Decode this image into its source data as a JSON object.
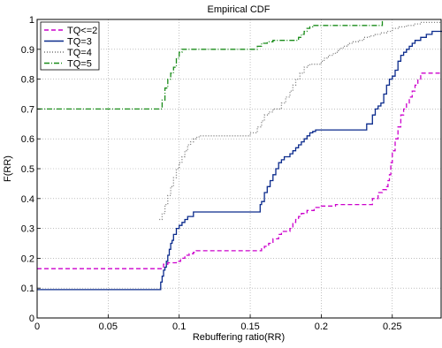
{
  "chart_data": {
    "type": "line",
    "step": true,
    "title": "Empirical CDF",
    "xlabel": "Rebuffering ratio(RR)",
    "ylabel": "F(RR)",
    "xlim": [
      0,
      0.285
    ],
    "ylim": [
      0,
      1
    ],
    "xticks": [
      0,
      0.05,
      0.1,
      0.15,
      0.2,
      0.25
    ],
    "xtick_labels": [
      "0",
      "0.05",
      "0.1",
      "0.15",
      "0.2",
      "0.25"
    ],
    "yticks": [
      0,
      0.1,
      0.2,
      0.3,
      0.4,
      0.5,
      0.6,
      0.7,
      0.8,
      0.9,
      1
    ],
    "ytick_labels": [
      "0",
      "0.1",
      "0.2",
      "0.3",
      "0.4",
      "0.5",
      "0.6",
      "0.7",
      "0.8",
      "0.9",
      "1"
    ],
    "grid": true,
    "legend_position": "top-left",
    "series": [
      {
        "name": "TQ<=2",
        "color": "#cc00cc",
        "dash": "5,3",
        "x": [
          0,
          0.088,
          0.089,
          0.092,
          0.098,
          0.101,
          0.104,
          0.107,
          0.11,
          0.112,
          0.135,
          0.15,
          0.155,
          0.158,
          0.16,
          0.163,
          0.166,
          0.17,
          0.172,
          0.175,
          0.178,
          0.18,
          0.182,
          0.184,
          0.186,
          0.19,
          0.195,
          0.2,
          0.21,
          0.22,
          0.233,
          0.236,
          0.24,
          0.243,
          0.246,
          0.247,
          0.248,
          0.249,
          0.25,
          0.252,
          0.254,
          0.256,
          0.258,
          0.26,
          0.262,
          0.264,
          0.266,
          0.268,
          0.27,
          0.285
        ],
        "y": [
          0.165,
          0.165,
          0.18,
          0.185,
          0.19,
          0.2,
          0.21,
          0.215,
          0.22,
          0.225,
          0.225,
          0.225,
          0.225,
          0.232,
          0.24,
          0.25,
          0.265,
          0.28,
          0.29,
          0.29,
          0.3,
          0.32,
          0.33,
          0.34,
          0.35,
          0.36,
          0.37,
          0.375,
          0.38,
          0.38,
          0.38,
          0.4,
          0.42,
          0.43,
          0.44,
          0.46,
          0.48,
          0.52,
          0.56,
          0.6,
          0.64,
          0.68,
          0.7,
          0.72,
          0.74,
          0.76,
          0.78,
          0.8,
          0.82,
          0.82
        ]
      },
      {
        "name": "TQ=3",
        "color": "#0a2a8c",
        "dash": "",
        "x": [
          0,
          0.086,
          0.087,
          0.088,
          0.089,
          0.09,
          0.091,
          0.092,
          0.093,
          0.094,
          0.095,
          0.096,
          0.098,
          0.1,
          0.102,
          0.104,
          0.106,
          0.11,
          0.12,
          0.14,
          0.155,
          0.157,
          0.158,
          0.16,
          0.162,
          0.164,
          0.166,
          0.168,
          0.17,
          0.172,
          0.174,
          0.176,
          0.178,
          0.18,
          0.182,
          0.184,
          0.186,
          0.188,
          0.19,
          0.192,
          0.194,
          0.196,
          0.198,
          0.2,
          0.202,
          0.21,
          0.22,
          0.228,
          0.232,
          0.236,
          0.238,
          0.24,
          0.242,
          0.244,
          0.246,
          0.248,
          0.25,
          0.252,
          0.254,
          0.256,
          0.258,
          0.26,
          0.262,
          0.264,
          0.266,
          0.27,
          0.274,
          0.278,
          0.285
        ],
        "y": [
          0.095,
          0.095,
          0.12,
          0.14,
          0.16,
          0.17,
          0.19,
          0.21,
          0.23,
          0.25,
          0.26,
          0.28,
          0.3,
          0.31,
          0.32,
          0.33,
          0.34,
          0.355,
          0.355,
          0.355,
          0.355,
          0.38,
          0.39,
          0.42,
          0.44,
          0.46,
          0.48,
          0.5,
          0.52,
          0.53,
          0.54,
          0.54,
          0.55,
          0.56,
          0.57,
          0.58,
          0.59,
          0.6,
          0.61,
          0.62,
          0.625,
          0.63,
          0.63,
          0.63,
          0.63,
          0.63,
          0.63,
          0.63,
          0.65,
          0.68,
          0.7,
          0.71,
          0.72,
          0.75,
          0.78,
          0.8,
          0.81,
          0.83,
          0.86,
          0.88,
          0.89,
          0.9,
          0.91,
          0.92,
          0.93,
          0.94,
          0.95,
          0.96,
          0.96
        ]
      },
      {
        "name": "TQ=4",
        "color": "#777777",
        "dash": "1,2",
        "x": [
          0.086,
          0.088,
          0.09,
          0.092,
          0.094,
          0.096,
          0.098,
          0.1,
          0.102,
          0.104,
          0.106,
          0.108,
          0.11,
          0.112,
          0.114,
          0.118,
          0.125,
          0.14,
          0.15,
          0.155,
          0.158,
          0.16,
          0.163,
          0.166,
          0.17,
          0.172,
          0.175,
          0.178,
          0.18,
          0.182,
          0.185,
          0.188,
          0.19,
          0.192,
          0.195,
          0.198,
          0.2,
          0.202,
          0.204,
          0.206,
          0.208,
          0.21,
          0.212,
          0.214,
          0.216,
          0.218,
          0.22,
          0.222,
          0.226,
          0.23,
          0.234,
          0.238,
          0.242,
          0.246,
          0.25,
          0.255,
          0.26,
          0.265,
          0.27,
          0.285
        ],
        "y": [
          0.33,
          0.35,
          0.38,
          0.41,
          0.44,
          0.47,
          0.5,
          0.52,
          0.54,
          0.56,
          0.58,
          0.59,
          0.6,
          0.605,
          0.61,
          0.61,
          0.61,
          0.61,
          0.62,
          0.64,
          0.66,
          0.68,
          0.69,
          0.7,
          0.7,
          0.72,
          0.74,
          0.76,
          0.78,
          0.8,
          0.82,
          0.84,
          0.845,
          0.85,
          0.85,
          0.85,
          0.86,
          0.87,
          0.875,
          0.88,
          0.885,
          0.89,
          0.9,
          0.905,
          0.91,
          0.915,
          0.92,
          0.925,
          0.93,
          0.94,
          0.945,
          0.95,
          0.955,
          0.96,
          0.97,
          0.975,
          0.98,
          0.985,
          0.99,
          0.99
        ]
      },
      {
        "name": "TQ=5",
        "color": "#1a8c1a",
        "dash": "6,2,1,2",
        "x": [
          0,
          0.085,
          0.088,
          0.09,
          0.092,
          0.094,
          0.096,
          0.098,
          0.1,
          0.102,
          0.12,
          0.15,
          0.155,
          0.158,
          0.162,
          0.166,
          0.17,
          0.175,
          0.18,
          0.184,
          0.186,
          0.188,
          0.19,
          0.192,
          0.194,
          0.2,
          0.22,
          0.242,
          0.243
        ],
        "y": [
          0.7,
          0.7,
          0.73,
          0.77,
          0.8,
          0.82,
          0.84,
          0.87,
          0.89,
          0.9,
          0.9,
          0.9,
          0.91,
          0.92,
          0.925,
          0.93,
          0.93,
          0.93,
          0.93,
          0.94,
          0.95,
          0.96,
          0.97,
          0.975,
          0.98,
          0.98,
          0.98,
          0.98,
          1.0
        ]
      }
    ]
  }
}
